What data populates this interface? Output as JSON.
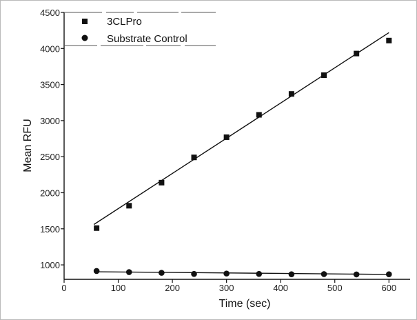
{
  "chart_data": {
    "type": "scatter",
    "title": "",
    "xlabel": "Time (sec)",
    "ylabel": "Mean RFU",
    "xlim": [
      0,
      620
    ],
    "ylim": [
      800,
      4500
    ],
    "xticks": [
      0,
      100,
      200,
      300,
      400,
      500,
      600
    ],
    "yticks": [
      1000,
      1500,
      2000,
      2500,
      3000,
      3500,
      4000,
      4500
    ],
    "xtick_labels": [
      "0",
      "100",
      "200",
      "300",
      "400",
      "500",
      "600"
    ],
    "ytick_labels": [
      "1000",
      "1500",
      "2000",
      "2500",
      "3000",
      "3500",
      "4000",
      "4500"
    ],
    "legend_position": "top-left",
    "grid": false,
    "series": [
      {
        "name": "3CLPro",
        "marker": "square",
        "x": [
          60,
          120,
          180,
          240,
          300,
          360,
          420,
          480,
          540,
          600
        ],
        "y": [
          1510,
          1820,
          2140,
          2490,
          2770,
          3080,
          3370,
          3630,
          3930,
          4110
        ],
        "fit": {
          "x": [
            55,
            600
          ],
          "y": [
            1560,
            4220
          ]
        }
      },
      {
        "name": "Substrate Control",
        "marker": "circle",
        "x": [
          60,
          120,
          180,
          240,
          300,
          360,
          420,
          480,
          540,
          600
        ],
        "y": [
          915,
          900,
          890,
          875,
          880,
          875,
          870,
          872,
          868,
          870
        ],
        "fit": {
          "x": [
            55,
            600
          ],
          "y": [
            905,
            868
          ]
        }
      }
    ]
  }
}
